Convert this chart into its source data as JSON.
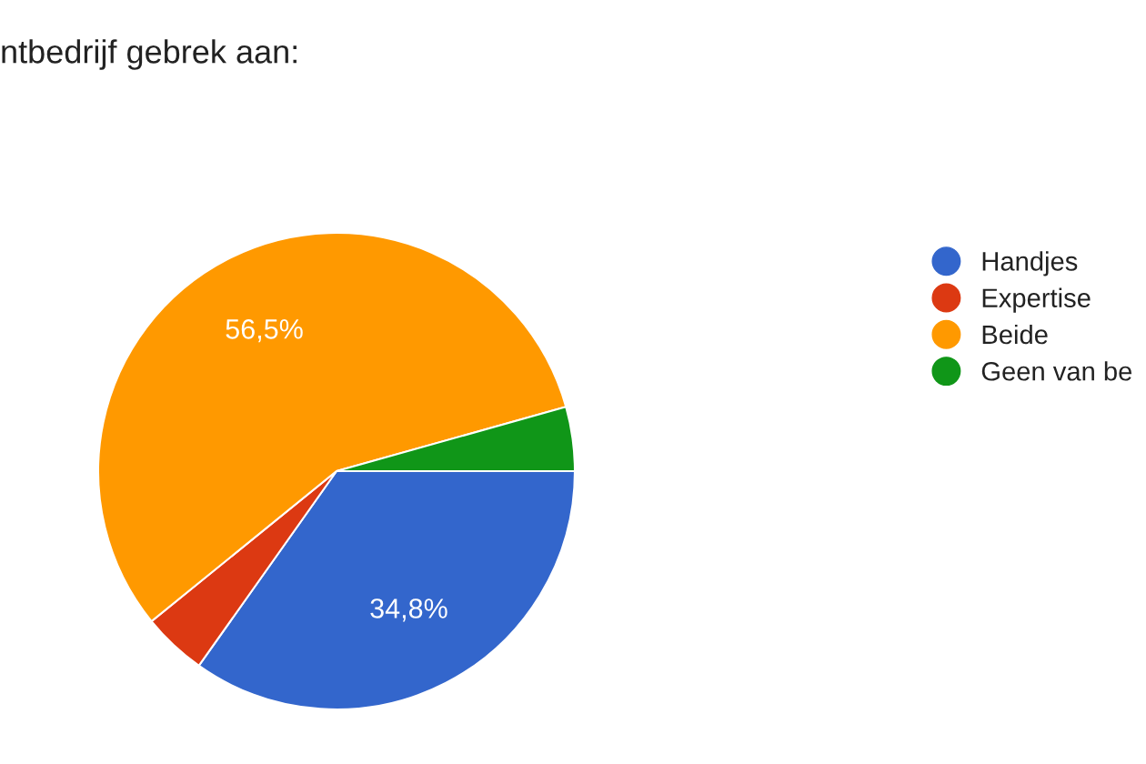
{
  "chart_data": {
    "type": "pie",
    "title": "ntbedrijf gebrek aan:",
    "categories": [
      "Handjes",
      "Expertise",
      "Beide",
      "Geen van be"
    ],
    "values": [
      34.8,
      4.35,
      56.5,
      4.35
    ],
    "colors": [
      "#3366cc",
      "#dc3912",
      "#ff9900",
      "#109618"
    ],
    "value_labels": [
      "34,8%",
      null,
      "56,5%",
      null
    ],
    "legend": "right"
  }
}
